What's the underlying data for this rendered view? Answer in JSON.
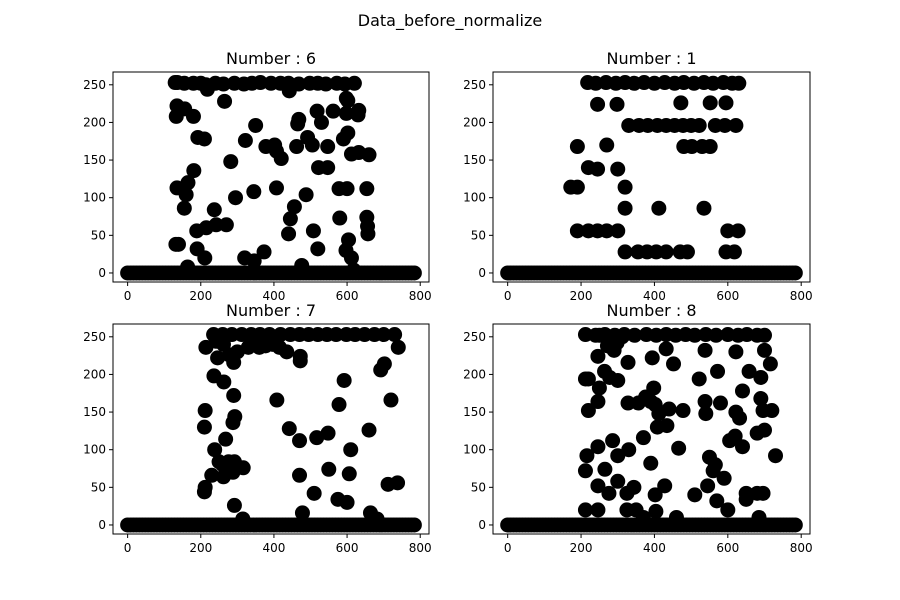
{
  "figure": {
    "suptitle": "Data_before_normalize"
  },
  "colors": {
    "marker": "#000000",
    "axes": "#000000",
    "background": "#ffffff"
  },
  "chart_data": [
    {
      "type": "scatter",
      "title": "Number : 6",
      "xlabel": "",
      "ylabel": "",
      "xlim": [
        -40,
        824
      ],
      "ylim": [
        -12,
        267
      ],
      "xticks": [
        0,
        200,
        400,
        600,
        800
      ],
      "yticks": [
        0,
        50,
        100,
        150,
        200,
        250
      ],
      "grid": false,
      "baseline": {
        "value": 0,
        "x_from": 0,
        "x_to": 784,
        "step": 8
      },
      "points": [
        [
          130,
          253
        ],
        [
          136,
          253
        ],
        [
          155,
          252
        ],
        [
          180,
          252
        ],
        [
          200,
          252
        ],
        [
          214,
          250
        ],
        [
          240,
          252
        ],
        [
          262,
          251
        ],
        [
          292,
          252
        ],
        [
          318,
          251
        ],
        [
          340,
          252
        ],
        [
          363,
          253
        ],
        [
          392,
          252
        ],
        [
          418,
          252
        ],
        [
          440,
          252
        ],
        [
          468,
          251
        ],
        [
          498,
          252
        ],
        [
          520,
          252
        ],
        [
          542,
          251
        ],
        [
          572,
          252
        ],
        [
          594,
          251
        ],
        [
          620,
          252
        ],
        [
          135,
          222
        ],
        [
          156,
          218
        ],
        [
          218,
          244
        ],
        [
          265,
          228
        ],
        [
          442,
          242
        ],
        [
          598,
          232
        ],
        [
          602,
          229
        ],
        [
          133,
          208
        ],
        [
          180,
          208
        ],
        [
          630,
          210
        ],
        [
          632,
          216
        ],
        [
          598,
          212
        ],
        [
          192,
          180
        ],
        [
          210,
          178
        ],
        [
          322,
          176
        ],
        [
          350,
          196
        ],
        [
          465,
          198
        ],
        [
          468,
          204
        ],
        [
          492,
          180
        ],
        [
          505,
          170
        ],
        [
          518,
          215
        ],
        [
          530,
          200
        ],
        [
          562,
          215
        ],
        [
          590,
          178
        ],
        [
          602,
          186
        ],
        [
          632,
          160
        ],
        [
          660,
          157
        ],
        [
          378,
          168
        ],
        [
          402,
          170
        ],
        [
          407,
          162
        ],
        [
          181,
          136
        ],
        [
          282,
          148
        ],
        [
          420,
          152
        ],
        [
          462,
          168
        ],
        [
          522,
          140
        ],
        [
          547,
          140
        ],
        [
          547,
          168
        ],
        [
          612,
          158
        ],
        [
          135,
          113
        ],
        [
          165,
          120
        ],
        [
          160,
          104
        ],
        [
          155,
          86
        ],
        [
          295,
          100
        ],
        [
          345,
          108
        ],
        [
          407,
          113
        ],
        [
          456,
          88
        ],
        [
          488,
          104
        ],
        [
          578,
          112
        ],
        [
          600,
          112
        ],
        [
          654,
          112
        ],
        [
          654,
          74
        ],
        [
          656,
          62
        ],
        [
          657,
          52
        ],
        [
          189,
          56
        ],
        [
          215,
          60
        ],
        [
          237,
          84
        ],
        [
          242,
          64
        ],
        [
          270,
          64
        ],
        [
          440,
          52
        ],
        [
          445,
          72
        ],
        [
          508,
          56
        ],
        [
          520,
          32
        ],
        [
          580,
          73
        ],
        [
          597,
          30
        ],
        [
          604,
          44
        ],
        [
          612,
          20
        ],
        [
          132,
          38
        ],
        [
          139,
          38
        ],
        [
          190,
          32
        ],
        [
          211,
          20
        ],
        [
          320,
          20
        ],
        [
          346,
          16
        ],
        [
          373,
          28
        ],
        [
          476,
          10
        ],
        [
          618,
          4
        ],
        [
          164,
          8
        ]
      ]
    },
    {
      "type": "scatter",
      "title": "Number : 1",
      "xlabel": "",
      "ylabel": "",
      "xlim": [
        -40,
        824
      ],
      "ylim": [
        -12,
        267
      ],
      "xticks": [
        0,
        200,
        400,
        600,
        800
      ],
      "yticks": [
        0,
        50,
        100,
        150,
        200,
        250
      ],
      "grid": false,
      "baseline": {
        "value": 0,
        "x_from": 0,
        "x_to": 784,
        "step": 8
      },
      "points": [
        [
          218,
          253
        ],
        [
          240,
          252
        ],
        [
          268,
          253
        ],
        [
          295,
          252
        ],
        [
          320,
          253
        ],
        [
          345,
          252
        ],
        [
          372,
          253
        ],
        [
          400,
          252
        ],
        [
          428,
          253
        ],
        [
          455,
          252
        ],
        [
          480,
          253
        ],
        [
          508,
          252
        ],
        [
          535,
          253
        ],
        [
          560,
          252
        ],
        [
          588,
          253
        ],
        [
          612,
          252
        ],
        [
          630,
          252
        ],
        [
          245,
          224
        ],
        [
          298,
          224
        ],
        [
          472,
          226
        ],
        [
          552,
          226
        ],
        [
          595,
          226
        ],
        [
          330,
          196
        ],
        [
          358,
          196
        ],
        [
          382,
          196
        ],
        [
          408,
          196
        ],
        [
          432,
          196
        ],
        [
          455,
          196
        ],
        [
          478,
          196
        ],
        [
          500,
          196
        ],
        [
          522,
          196
        ],
        [
          566,
          196
        ],
        [
          592,
          196
        ],
        [
          622,
          196
        ],
        [
          190,
          168
        ],
        [
          270,
          170
        ],
        [
          480,
          168
        ],
        [
          502,
          168
        ],
        [
          530,
          168
        ],
        [
          552,
          168
        ],
        [
          220,
          140
        ],
        [
          245,
          138
        ],
        [
          300,
          138
        ],
        [
          172,
          114
        ],
        [
          190,
          114
        ],
        [
          320,
          114
        ],
        [
          320,
          86
        ],
        [
          412,
          86
        ],
        [
          535,
          86
        ],
        [
          190,
          56
        ],
        [
          220,
          56
        ],
        [
          245,
          56
        ],
        [
          270,
          56
        ],
        [
          300,
          56
        ],
        [
          600,
          56
        ],
        [
          628,
          56
        ],
        [
          320,
          28
        ],
        [
          355,
          28
        ],
        [
          380,
          28
        ],
        [
          405,
          28
        ],
        [
          432,
          28
        ],
        [
          470,
          28
        ],
        [
          490,
          28
        ],
        [
          595,
          28
        ],
        [
          618,
          28
        ]
      ]
    },
    {
      "type": "scatter",
      "title": "Number : 7",
      "xlabel": "",
      "ylabel": "",
      "xlim": [
        -40,
        824
      ],
      "ylim": [
        -12,
        267
      ],
      "xticks": [
        0,
        200,
        400,
        600,
        800
      ],
      "yticks": [
        0,
        50,
        100,
        150,
        200,
        250
      ],
      "grid": false,
      "baseline": {
        "value": 0,
        "x_from": 0,
        "x_to": 784,
        "step": 8
      },
      "points": [
        [
          235,
          253
        ],
        [
          260,
          253
        ],
        [
          285,
          253
        ],
        [
          312,
          253
        ],
        [
          338,
          253
        ],
        [
          362,
          253
        ],
        [
          388,
          253
        ],
        [
          418,
          253
        ],
        [
          445,
          253
        ],
        [
          470,
          253
        ],
        [
          495,
          253
        ],
        [
          520,
          253
        ],
        [
          545,
          253
        ],
        [
          570,
          253
        ],
        [
          598,
          253
        ],
        [
          622,
          253
        ],
        [
          648,
          253
        ],
        [
          675,
          253
        ],
        [
          700,
          253
        ],
        [
          730,
          253
        ],
        [
          214,
          236
        ],
        [
          242,
          244
        ],
        [
          262,
          240
        ],
        [
          300,
          230
        ],
        [
          330,
          236
        ],
        [
          342,
          240
        ],
        [
          360,
          236
        ],
        [
          377,
          238
        ],
        [
          396,
          240
        ],
        [
          415,
          236
        ],
        [
          435,
          230
        ],
        [
          740,
          236
        ],
        [
          246,
          222
        ],
        [
          278,
          226
        ],
        [
          290,
          216
        ],
        [
          472,
          218
        ],
        [
          472,
          224
        ],
        [
          702,
          214
        ],
        [
          236,
          198
        ],
        [
          263,
          190
        ],
        [
          592,
          192
        ],
        [
          692,
          206
        ],
        [
          290,
          172
        ],
        [
          408,
          166
        ],
        [
          578,
          160
        ],
        [
          720,
          166
        ],
        [
          212,
          152
        ],
        [
          210,
          130
        ],
        [
          293,
          144
        ],
        [
          288,
          136
        ],
        [
          268,
          114
        ],
        [
          442,
          128
        ],
        [
          470,
          112
        ],
        [
          517,
          116
        ],
        [
          548,
          122
        ],
        [
          660,
          126
        ],
        [
          238,
          100
        ],
        [
          250,
          84
        ],
        [
          260,
          80
        ],
        [
          276,
          84
        ],
        [
          292,
          84
        ],
        [
          316,
          76
        ],
        [
          230,
          66
        ],
        [
          262,
          64
        ],
        [
          288,
          70
        ],
        [
          610,
          100
        ],
        [
          470,
          66
        ],
        [
          550,
          74
        ],
        [
          606,
          68
        ],
        [
          712,
          54
        ],
        [
          738,
          56
        ],
        [
          212,
          50
        ],
        [
          210,
          44
        ],
        [
          510,
          42
        ],
        [
          292,
          26
        ],
        [
          315,
          8
        ],
        [
          478,
          16
        ],
        [
          575,
          34
        ],
        [
          600,
          30
        ],
        [
          664,
          16
        ],
        [
          682,
          8
        ]
      ]
    },
    {
      "type": "scatter",
      "title": "Number : 8",
      "xlabel": "",
      "ylabel": "",
      "xlim": [
        -40,
        824
      ],
      "ylim": [
        -12,
        267
      ],
      "xticks": [
        0,
        200,
        400,
        600,
        800
      ],
      "yticks": [
        0,
        50,
        100,
        150,
        200,
        250
      ],
      "grid": false,
      "baseline": {
        "value": 0,
        "x_from": 0,
        "x_to": 784,
        "step": 8
      },
      "points": [
        [
          212,
          253
        ],
        [
          240,
          252
        ],
        [
          250,
          252
        ],
        [
          265,
          253
        ],
        [
          292,
          252
        ],
        [
          318,
          253
        ],
        [
          346,
          252
        ],
        [
          378,
          253
        ],
        [
          405,
          252
        ],
        [
          432,
          253
        ],
        [
          458,
          252
        ],
        [
          485,
          253
        ],
        [
          510,
          252
        ],
        [
          540,
          253
        ],
        [
          568,
          252
        ],
        [
          600,
          253
        ],
        [
          628,
          252
        ],
        [
          652,
          253
        ],
        [
          680,
          252
        ],
        [
          700,
          252
        ],
        [
          246,
          224
        ],
        [
          272,
          238
        ],
        [
          290,
          232
        ],
        [
          298,
          242
        ],
        [
          312,
          250
        ],
        [
          328,
          216
        ],
        [
          394,
          222
        ],
        [
          432,
          234
        ],
        [
          452,
          214
        ],
        [
          538,
          232
        ],
        [
          622,
          230
        ],
        [
          658,
          204
        ],
        [
          690,
          196
        ],
        [
          716,
          214
        ],
        [
          700,
          232
        ],
        [
          212,
          194
        ],
        [
          220,
          194
        ],
        [
          250,
          182
        ],
        [
          264,
          204
        ],
        [
          278,
          196
        ],
        [
          300,
          192
        ],
        [
          398,
          182
        ],
        [
          522,
          194
        ],
        [
          572,
          204
        ],
        [
          640,
          178
        ],
        [
          220,
          152
        ],
        [
          246,
          164
        ],
        [
          328,
          162
        ],
        [
          356,
          162
        ],
        [
          376,
          170
        ],
        [
          390,
          164
        ],
        [
          402,
          160
        ],
        [
          412,
          148
        ],
        [
          440,
          154
        ],
        [
          478,
          152
        ],
        [
          538,
          164
        ],
        [
          540,
          148
        ],
        [
          580,
          162
        ],
        [
          622,
          150
        ],
        [
          632,
          142
        ],
        [
          690,
          168
        ],
        [
          696,
          152
        ],
        [
          720,
          152
        ],
        [
          216,
          92
        ],
        [
          246,
          104
        ],
        [
          265,
          74
        ],
        [
          286,
          112
        ],
        [
          300,
          92
        ],
        [
          330,
          100
        ],
        [
          370,
          116
        ],
        [
          408,
          130
        ],
        [
          434,
          132
        ],
        [
          466,
          102
        ],
        [
          550,
          90
        ],
        [
          560,
          72
        ],
        [
          566,
          80
        ],
        [
          590,
          62
        ],
        [
          605,
          112
        ],
        [
          620,
          118
        ],
        [
          640,
          104
        ],
        [
          680,
          122
        ],
        [
          700,
          126
        ],
        [
          730,
          92
        ],
        [
          212,
          72
        ],
        [
          246,
          52
        ],
        [
          276,
          42
        ],
        [
          300,
          58
        ],
        [
          325,
          42
        ],
        [
          344,
          50
        ],
        [
          390,
          82
        ],
        [
          402,
          40
        ],
        [
          428,
          52
        ],
        [
          510,
          40
        ],
        [
          545,
          52
        ],
        [
          570,
          32
        ],
        [
          650,
          42
        ],
        [
          650,
          34
        ],
        [
          680,
          42
        ],
        [
          696,
          42
        ],
        [
          212,
          20
        ],
        [
          246,
          20
        ],
        [
          325,
          20
        ],
        [
          350,
          20
        ],
        [
          370,
          10
        ],
        [
          404,
          18
        ],
        [
          460,
          10
        ],
        [
          600,
          20
        ],
        [
          685,
          10
        ]
      ]
    }
  ]
}
